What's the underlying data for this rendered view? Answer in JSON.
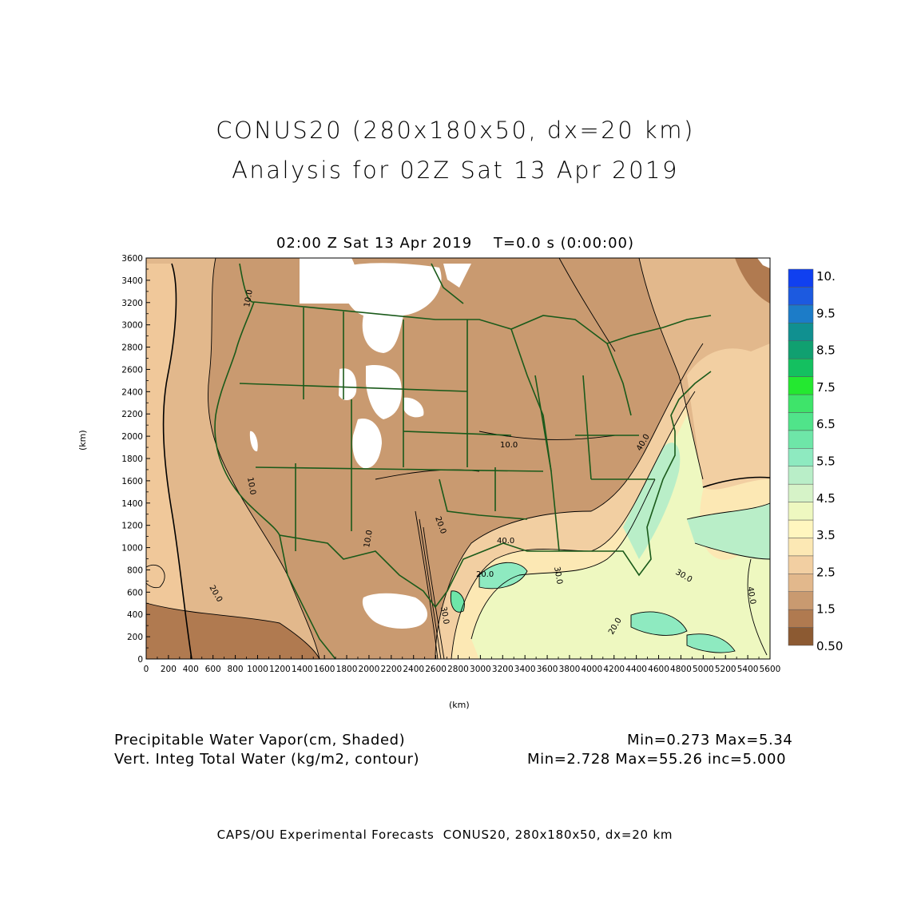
{
  "header": {
    "title_line1": "CONUS20 (280x180x50, dx=20 km)",
    "title_line2": "Analysis for 02Z Sat 13 Apr 2019",
    "valid_time": "02:00 Z Sat 13 Apr 2019    T=0.0 s (0:00:00)"
  },
  "axes": {
    "x_unit": "(km)",
    "y_unit": "(km)",
    "x_ticks": [
      "0",
      "200",
      "400",
      "600",
      "800",
      "1000",
      "1200",
      "1400",
      "1600",
      "1800",
      "2000",
      "2200",
      "2400",
      "2600",
      "2800",
      "3000",
      "3200",
      "3400",
      "3600",
      "3800",
      "4000",
      "4200",
      "4400",
      "4600",
      "4800",
      "5000",
      "5200",
      "5400",
      "5600"
    ],
    "y_ticks": [
      "0",
      "200",
      "400",
      "600",
      "800",
      "1000",
      "1200",
      "1400",
      "1600",
      "1800",
      "2000",
      "2200",
      "2400",
      "2600",
      "2800",
      "3000",
      "3200",
      "3400",
      "3600"
    ],
    "x_range_km": [
      0,
      5600
    ],
    "y_range_km": [
      0,
      3600
    ]
  },
  "colorbar": {
    "labels": [
      "10.",
      "9.5",
      "8.5",
      "7.5",
      "6.5",
      "5.5",
      "4.5",
      "3.5",
      "2.5",
      "1.5",
      "0.50"
    ],
    "colors": [
      "#8c5a32",
      "#b07a50",
      "#c99a70",
      "#e2b88c",
      "#f2cfa2",
      "#fce8b4",
      "#fff6bf",
      "#eef8c0",
      "#d6f3c8",
      "#b9eec8",
      "#8eeac0",
      "#6ee6a8",
      "#50e48a",
      "#3ee46a",
      "#24e830",
      "#14c060",
      "#10a070",
      "#109090",
      "#1c7cc8",
      "#1c5ae0",
      "#1040f0"
    ]
  },
  "contour_labels": [
    "10.0",
    "10.0",
    "10.0",
    "20.0",
    "20.0",
    "20.0",
    "30.0",
    "30.0",
    "30.0",
    "40.0",
    "40.0",
    "40.0",
    "10.0",
    "20.0"
  ],
  "info": {
    "field1": "Precipitable Water Vapor(cm, Shaded)",
    "field1_stats": "Min=0.273 Max=5.34",
    "field2": "Vert. Integ Total Water (kg/m2, contour)",
    "field2_stats": "Min=2.728 Max=55.26 inc=5.000"
  },
  "footer": "CAPS/OU Experimental Forecasts  CONUS20, 280x180x50, dx=20 km"
}
